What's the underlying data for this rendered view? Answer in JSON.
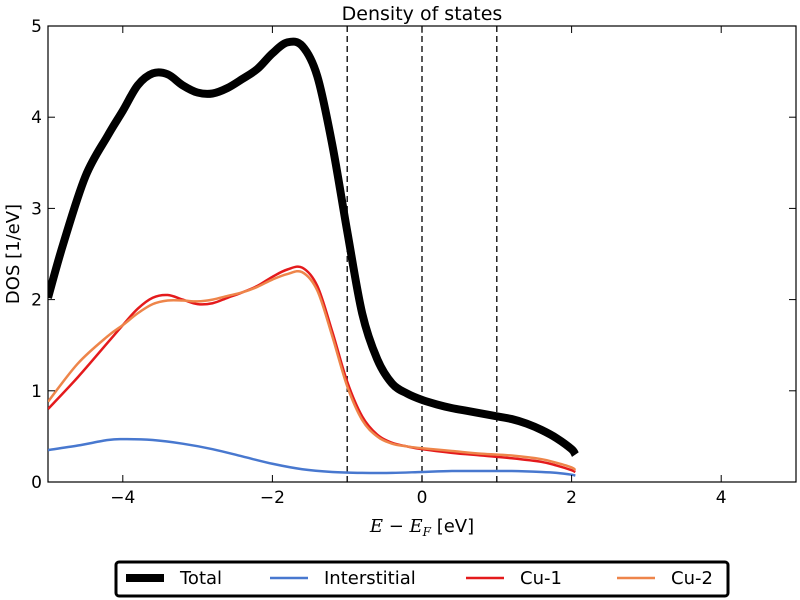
{
  "chart_data": {
    "type": "line",
    "title": "Density of states",
    "xlabel_math": "E − E",
    "xlabel_sub": "F",
    "xlabel_unit": " [eV]",
    "ylabel": "DOS [1/eV]",
    "xlim": [
      -5,
      5
    ],
    "ylim": [
      0,
      5
    ],
    "xticks": [
      -4,
      -2,
      0,
      2,
      4
    ],
    "xtick_labels": [
      "−4",
      "−2",
      "0",
      "2",
      "4"
    ],
    "yticks": [
      0,
      1,
      2,
      3,
      4,
      5
    ],
    "ytick_labels": [
      "0",
      "1",
      "2",
      "3",
      "4",
      "5"
    ],
    "vlines": [
      -1,
      0,
      1
    ],
    "legend_position": "bottom-center-outside",
    "series": [
      {
        "name": "Total",
        "color": "#000000",
        "linewidth": 8,
        "x": [
          -5.0,
          -4.8,
          -4.5,
          -4.2,
          -4.0,
          -3.8,
          -3.6,
          -3.4,
          -3.2,
          -3.0,
          -2.8,
          -2.6,
          -2.4,
          -2.2,
          -2.0,
          -1.8,
          -1.6,
          -1.4,
          -1.2,
          -1.0,
          -0.8,
          -0.6,
          -0.4,
          -0.2,
          0.0,
          0.2,
          0.4,
          0.6,
          0.8,
          1.0,
          1.2,
          1.4,
          1.6,
          1.8,
          2.0,
          2.05
        ],
        "y": [
          2.02,
          2.6,
          3.35,
          3.8,
          4.07,
          4.35,
          4.48,
          4.47,
          4.35,
          4.27,
          4.26,
          4.32,
          4.42,
          4.53,
          4.7,
          4.82,
          4.78,
          4.45,
          3.7,
          2.75,
          1.85,
          1.35,
          1.08,
          0.97,
          0.9,
          0.85,
          0.81,
          0.78,
          0.75,
          0.72,
          0.69,
          0.64,
          0.57,
          0.48,
          0.36,
          0.3
        ]
      },
      {
        "name": "Interstitial",
        "color": "#4878cf",
        "linewidth": 2.5,
        "x": [
          -5.0,
          -4.6,
          -4.2,
          -4.0,
          -3.6,
          -3.2,
          -2.8,
          -2.4,
          -2.0,
          -1.6,
          -1.2,
          -0.8,
          -0.4,
          0.0,
          0.4,
          0.8,
          1.2,
          1.6,
          1.8,
          2.0,
          2.05
        ],
        "y": [
          0.35,
          0.4,
          0.46,
          0.47,
          0.46,
          0.42,
          0.36,
          0.28,
          0.2,
          0.14,
          0.11,
          0.1,
          0.1,
          0.11,
          0.12,
          0.12,
          0.12,
          0.11,
          0.1,
          0.08,
          0.07
        ]
      },
      {
        "name": "Cu-1",
        "color": "#e41a1c",
        "linewidth": 2.5,
        "x": [
          -5.0,
          -4.6,
          -4.2,
          -4.0,
          -3.8,
          -3.6,
          -3.4,
          -3.2,
          -3.0,
          -2.8,
          -2.6,
          -2.4,
          -2.2,
          -2.0,
          -1.8,
          -1.6,
          -1.4,
          -1.2,
          -1.0,
          -0.8,
          -0.6,
          -0.4,
          -0.2,
          0.0,
          0.4,
          0.8,
          1.2,
          1.6,
          1.8,
          2.0,
          2.05
        ],
        "y": [
          0.8,
          1.15,
          1.53,
          1.72,
          1.9,
          2.02,
          2.05,
          2.0,
          1.95,
          1.96,
          2.02,
          2.08,
          2.15,
          2.25,
          2.33,
          2.35,
          2.15,
          1.65,
          1.1,
          0.72,
          0.52,
          0.43,
          0.39,
          0.36,
          0.32,
          0.29,
          0.26,
          0.22,
          0.18,
          0.13,
          0.11
        ]
      },
      {
        "name": "Cu-2",
        "color": "#ee854a",
        "linewidth": 2.5,
        "x": [
          -5.0,
          -4.6,
          -4.2,
          -4.0,
          -3.8,
          -3.6,
          -3.4,
          -3.2,
          -3.0,
          -2.8,
          -2.6,
          -2.4,
          -2.2,
          -2.0,
          -1.8,
          -1.6,
          -1.4,
          -1.2,
          -1.0,
          -0.8,
          -0.6,
          -0.4,
          -0.2,
          0.0,
          0.4,
          0.8,
          1.2,
          1.6,
          1.8,
          2.0,
          2.05
        ],
        "y": [
          0.88,
          1.3,
          1.6,
          1.72,
          1.85,
          1.95,
          1.99,
          1.99,
          1.98,
          2.0,
          2.04,
          2.08,
          2.14,
          2.22,
          2.28,
          2.3,
          2.1,
          1.6,
          1.05,
          0.68,
          0.5,
          0.42,
          0.39,
          0.37,
          0.34,
          0.31,
          0.29,
          0.25,
          0.21,
          0.16,
          0.13
        ]
      }
    ]
  }
}
